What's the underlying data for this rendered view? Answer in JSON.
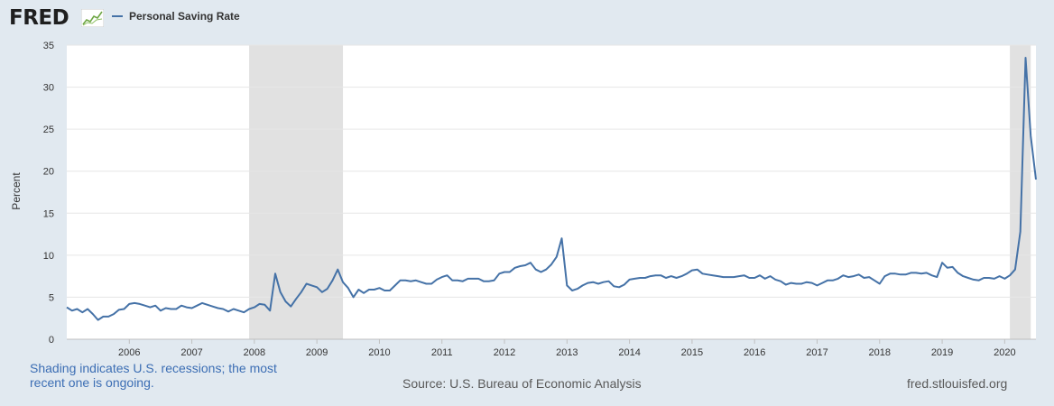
{
  "header": {
    "logo_text": "FRED",
    "legend_label": "Personal Saving Rate",
    "series_color": "#4572a7"
  },
  "footer": {
    "note": "Shading indicates U.S. recessions; the most recent one is ongoing.",
    "source": "Source: U.S. Bureau of Economic Analysis",
    "url": "fred.stlouisfed.org"
  },
  "chart_data": {
    "type": "line",
    "ylabel": "Percent",
    "xlabel": "",
    "ylim": [
      0,
      35
    ],
    "xlim": [
      "2005-01",
      "2020-06"
    ],
    "yticks": [
      0,
      5,
      10,
      15,
      20,
      25,
      30,
      35
    ],
    "xticks": [
      "2006",
      "2007",
      "2008",
      "2009",
      "2010",
      "2011",
      "2012",
      "2013",
      "2014",
      "2015",
      "2016",
      "2017",
      "2018",
      "2019",
      "2020"
    ],
    "grid": true,
    "legend_position": "top-left",
    "recessions": [
      {
        "start": "2007-12",
        "end": "2009-06"
      },
      {
        "start": "2020-02",
        "end": "2020-06"
      }
    ],
    "series": [
      {
        "name": "Personal Saving Rate",
        "color": "#4572a7",
        "points": [
          [
            "2005-01",
            3.8
          ],
          [
            "2005-02",
            3.4
          ],
          [
            "2005-03",
            3.6
          ],
          [
            "2005-04",
            3.2
          ],
          [
            "2005-05",
            3.6
          ],
          [
            "2005-06",
            3.0
          ],
          [
            "2005-07",
            2.3
          ],
          [
            "2005-08",
            2.7
          ],
          [
            "2005-09",
            2.7
          ],
          [
            "2005-10",
            3.0
          ],
          [
            "2005-11",
            3.5
          ],
          [
            "2005-12",
            3.6
          ],
          [
            "2006-01",
            4.2
          ],
          [
            "2006-02",
            4.3
          ],
          [
            "2006-03",
            4.2
          ],
          [
            "2006-04",
            4.0
          ],
          [
            "2006-05",
            3.8
          ],
          [
            "2006-06",
            4.0
          ],
          [
            "2006-07",
            3.4
          ],
          [
            "2006-08",
            3.7
          ],
          [
            "2006-09",
            3.6
          ],
          [
            "2006-10",
            3.6
          ],
          [
            "2006-11",
            4.0
          ],
          [
            "2006-12",
            3.8
          ],
          [
            "2007-01",
            3.7
          ],
          [
            "2007-02",
            4.0
          ],
          [
            "2007-03",
            4.3
          ],
          [
            "2007-04",
            4.1
          ],
          [
            "2007-05",
            3.9
          ],
          [
            "2007-06",
            3.7
          ],
          [
            "2007-07",
            3.6
          ],
          [
            "2007-08",
            3.3
          ],
          [
            "2007-09",
            3.6
          ],
          [
            "2007-10",
            3.4
          ],
          [
            "2007-11",
            3.2
          ],
          [
            "2007-12",
            3.6
          ],
          [
            "2008-01",
            3.8
          ],
          [
            "2008-02",
            4.2
          ],
          [
            "2008-03",
            4.1
          ],
          [
            "2008-04",
            3.4
          ],
          [
            "2008-05",
            7.8
          ],
          [
            "2008-06",
            5.6
          ],
          [
            "2008-07",
            4.5
          ],
          [
            "2008-08",
            3.9
          ],
          [
            "2008-09",
            4.8
          ],
          [
            "2008-10",
            5.6
          ],
          [
            "2008-11",
            6.6
          ],
          [
            "2008-12",
            6.4
          ],
          [
            "2009-01",
            6.2
          ],
          [
            "2009-02",
            5.6
          ],
          [
            "2009-03",
            6.0
          ],
          [
            "2009-04",
            7.0
          ],
          [
            "2009-05",
            8.3
          ],
          [
            "2009-06",
            6.8
          ],
          [
            "2009-07",
            6.1
          ],
          [
            "2009-08",
            5.0
          ],
          [
            "2009-09",
            5.9
          ],
          [
            "2009-10",
            5.5
          ],
          [
            "2009-11",
            5.9
          ],
          [
            "2009-12",
            5.9
          ],
          [
            "2010-01",
            6.1
          ],
          [
            "2010-02",
            5.8
          ],
          [
            "2010-03",
            5.8
          ],
          [
            "2010-04",
            6.4
          ],
          [
            "2010-05",
            7.0
          ],
          [
            "2010-06",
            7.0
          ],
          [
            "2010-07",
            6.9
          ],
          [
            "2010-08",
            7.0
          ],
          [
            "2010-09",
            6.8
          ],
          [
            "2010-10",
            6.6
          ],
          [
            "2010-11",
            6.6
          ],
          [
            "2010-12",
            7.1
          ],
          [
            "2011-01",
            7.4
          ],
          [
            "2011-02",
            7.6
          ],
          [
            "2011-03",
            7.0
          ],
          [
            "2011-04",
            7.0
          ],
          [
            "2011-05",
            6.9
          ],
          [
            "2011-06",
            7.2
          ],
          [
            "2011-07",
            7.2
          ],
          [
            "2011-08",
            7.2
          ],
          [
            "2011-09",
            6.9
          ],
          [
            "2011-10",
            6.9
          ],
          [
            "2011-11",
            7.0
          ],
          [
            "2011-12",
            7.8
          ],
          [
            "2012-01",
            8.0
          ],
          [
            "2012-02",
            8.0
          ],
          [
            "2012-03",
            8.5
          ],
          [
            "2012-04",
            8.7
          ],
          [
            "2012-05",
            8.8
          ],
          [
            "2012-06",
            9.1
          ],
          [
            "2012-07",
            8.3
          ],
          [
            "2012-08",
            8.0
          ],
          [
            "2012-09",
            8.3
          ],
          [
            "2012-10",
            8.9
          ],
          [
            "2012-11",
            9.8
          ],
          [
            "2012-12",
            12.0
          ],
          [
            "2013-01",
            6.4
          ],
          [
            "2013-02",
            5.8
          ],
          [
            "2013-03",
            6.0
          ],
          [
            "2013-04",
            6.4
          ],
          [
            "2013-05",
            6.7
          ],
          [
            "2013-06",
            6.8
          ],
          [
            "2013-07",
            6.6
          ],
          [
            "2013-08",
            6.8
          ],
          [
            "2013-09",
            6.9
          ],
          [
            "2013-10",
            6.3
          ],
          [
            "2013-11",
            6.2
          ],
          [
            "2013-12",
            6.5
          ],
          [
            "2014-01",
            7.1
          ],
          [
            "2014-02",
            7.2
          ],
          [
            "2014-03",
            7.3
          ],
          [
            "2014-04",
            7.3
          ],
          [
            "2014-05",
            7.5
          ],
          [
            "2014-06",
            7.6
          ],
          [
            "2014-07",
            7.6
          ],
          [
            "2014-08",
            7.3
          ],
          [
            "2014-09",
            7.5
          ],
          [
            "2014-10",
            7.3
          ],
          [
            "2014-11",
            7.5
          ],
          [
            "2014-12",
            7.8
          ],
          [
            "2015-01",
            8.2
          ],
          [
            "2015-02",
            8.3
          ],
          [
            "2015-03",
            7.8
          ],
          [
            "2015-04",
            7.7
          ],
          [
            "2015-05",
            7.6
          ],
          [
            "2015-06",
            7.5
          ],
          [
            "2015-07",
            7.4
          ],
          [
            "2015-08",
            7.4
          ],
          [
            "2015-09",
            7.4
          ],
          [
            "2015-10",
            7.5
          ],
          [
            "2015-11",
            7.6
          ],
          [
            "2015-12",
            7.3
          ],
          [
            "2016-01",
            7.3
          ],
          [
            "2016-02",
            7.6
          ],
          [
            "2016-03",
            7.2
          ],
          [
            "2016-04",
            7.5
          ],
          [
            "2016-05",
            7.1
          ],
          [
            "2016-06",
            6.9
          ],
          [
            "2016-07",
            6.5
          ],
          [
            "2016-08",
            6.7
          ],
          [
            "2016-09",
            6.6
          ],
          [
            "2016-10",
            6.6
          ],
          [
            "2016-11",
            6.8
          ],
          [
            "2016-12",
            6.7
          ],
          [
            "2017-01",
            6.4
          ],
          [
            "2017-02",
            6.7
          ],
          [
            "2017-03",
            7.0
          ],
          [
            "2017-04",
            7.0
          ],
          [
            "2017-05",
            7.2
          ],
          [
            "2017-06",
            7.6
          ],
          [
            "2017-07",
            7.4
          ],
          [
            "2017-08",
            7.5
          ],
          [
            "2017-09",
            7.7
          ],
          [
            "2017-10",
            7.3
          ],
          [
            "2017-11",
            7.4
          ],
          [
            "2017-12",
            7.0
          ],
          [
            "2018-01",
            6.6
          ],
          [
            "2018-02",
            7.5
          ],
          [
            "2018-03",
            7.8
          ],
          [
            "2018-04",
            7.8
          ],
          [
            "2018-05",
            7.7
          ],
          [
            "2018-06",
            7.7
          ],
          [
            "2018-07",
            7.9
          ],
          [
            "2018-08",
            7.9
          ],
          [
            "2018-09",
            7.8
          ],
          [
            "2018-10",
            7.9
          ],
          [
            "2018-11",
            7.6
          ],
          [
            "2018-12",
            7.4
          ],
          [
            "2019-01",
            9.1
          ],
          [
            "2019-02",
            8.5
          ],
          [
            "2019-03",
            8.6
          ],
          [
            "2019-04",
            7.9
          ],
          [
            "2019-05",
            7.5
          ],
          [
            "2019-06",
            7.3
          ],
          [
            "2019-07",
            7.1
          ],
          [
            "2019-08",
            7.0
          ],
          [
            "2019-09",
            7.3
          ],
          [
            "2019-10",
            7.3
          ],
          [
            "2019-11",
            7.2
          ],
          [
            "2019-12",
            7.5
          ],
          [
            "2020-01",
            7.2
          ],
          [
            "2020-02",
            7.6
          ],
          [
            "2020-03",
            8.3
          ],
          [
            "2020-04",
            12.8
          ],
          [
            "2020-05",
            33.5
          ],
          [
            "2020-06",
            24.2
          ],
          [
            "2020-07",
            19.0
          ]
        ]
      }
    ]
  }
}
